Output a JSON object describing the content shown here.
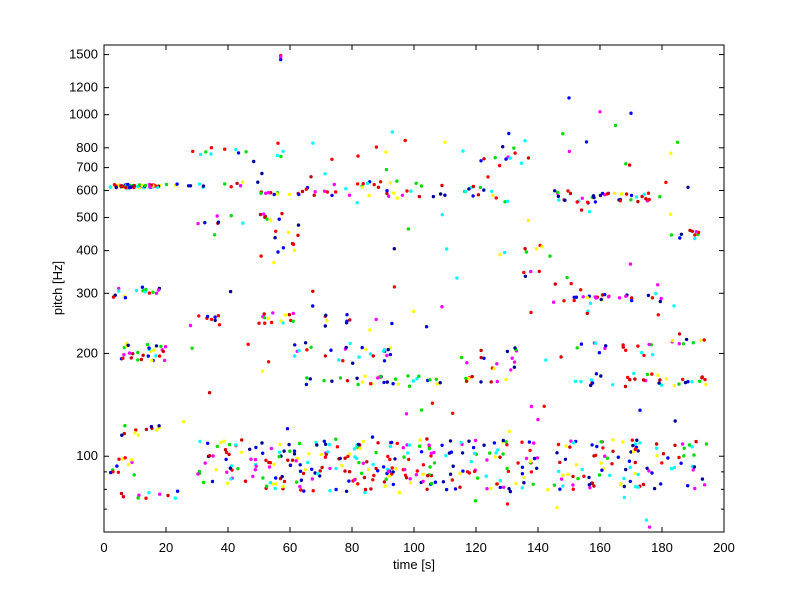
{
  "chart_data": {
    "type": "scatter",
    "title": "",
    "xlabel": "time [s]",
    "ylabel": "pitch [Hz]",
    "xlim": [
      0,
      200
    ],
    "ylim": [
      60,
      1600
    ],
    "yscale": "log",
    "grid": false,
    "legend": "none",
    "x_ticks": [
      0,
      20,
      40,
      60,
      80,
      100,
      120,
      140,
      160,
      180,
      200
    ],
    "x_tick_labels": [
      "0",
      "20",
      "40",
      "60",
      "80",
      "100",
      "120",
      "140",
      "160",
      "180",
      "200"
    ],
    "y_ticks": [
      100,
      200,
      300,
      400,
      500,
      600,
      700,
      800,
      1000,
      1200,
      1500
    ],
    "y_tick_labels": [
      "100",
      "200",
      "300",
      "400",
      "500",
      "600",
      "700",
      "800",
      "1000",
      "1200",
      "1500"
    ],
    "series_colors": [
      "#ff0000",
      "#0000ff",
      "#00dd00",
      "#ff00ff",
      "#00ffff",
      "#ffff00",
      "#000099",
      "#cc0000"
    ],
    "clusters": [
      {
        "x": [
          2,
          18
        ],
        "y": [
          610,
          625
        ],
        "n": 60
      },
      {
        "x": [
          2,
          20
        ],
        "y": [
          190,
          215
        ],
        "n": 30
      },
      {
        "x": [
          3,
          18
        ],
        "y": [
          290,
          315
        ],
        "n": 16
      },
      {
        "x": [
          5,
          18
        ],
        "y": [
          115,
          125
        ],
        "n": 12
      },
      {
        "x": [
          2,
          12
        ],
        "y": [
          88,
          100
        ],
        "n": 12
      },
      {
        "x": [
          5,
          25
        ],
        "y": [
          75,
          80
        ],
        "n": 10
      },
      {
        "x": [
          20,
          45
        ],
        "y": [
          610,
          630
        ],
        "n": 12
      },
      {
        "x": [
          30,
          60
        ],
        "y": [
          80,
          112
        ],
        "n": 70
      },
      {
        "x": [
          30,
          60
        ],
        "y": [
          480,
          520
        ],
        "n": 14
      },
      {
        "x": [
          25,
          60
        ],
        "y": [
          750,
          810
        ],
        "n": 12
      },
      {
        "x": [
          30,
          40
        ],
        "y": [
          240,
          260
        ],
        "n": 8
      },
      {
        "x": [
          50,
          65
        ],
        "y": [
          245,
          265
        ],
        "n": 14
      },
      {
        "x": [
          50,
          65
        ],
        "y": [
          580,
          600
        ],
        "n": 12
      },
      {
        "x": [
          55,
          65
        ],
        "y": [
          380,
          480
        ],
        "n": 10
      },
      {
        "x": [
          60,
          80
        ],
        "y": [
          190,
          215
        ],
        "n": 14
      },
      {
        "x": [
          60,
          100
        ],
        "y": [
          78,
          112
        ],
        "n": 110
      },
      {
        "x": [
          65,
          80
        ],
        "y": [
          580,
          620
        ],
        "n": 10
      },
      {
        "x": [
          70,
          80
        ],
        "y": [
          240,
          260
        ],
        "n": 8
      },
      {
        "x": [
          80,
          110
        ],
        "y": [
          570,
          640
        ],
        "n": 24
      },
      {
        "x": [
          80,
          95
        ],
        "y": [
          190,
          210
        ],
        "n": 12
      },
      {
        "x": [
          65,
          130
        ],
        "y": [
          162,
          172
        ],
        "n": 40
      },
      {
        "x": [
          100,
          140
        ],
        "y": [
          80,
          112
        ],
        "n": 90
      },
      {
        "x": [
          105,
          130
        ],
        "y": [
          570,
          620
        ],
        "n": 14
      },
      {
        "x": [
          115,
          135
        ],
        "y": [
          180,
          210
        ],
        "n": 14
      },
      {
        "x": [
          120,
          135
        ],
        "y": [
          700,
          800
        ],
        "n": 10
      },
      {
        "x": [
          135,
          145
        ],
        "y": [
          330,
          420
        ],
        "n": 10
      },
      {
        "x": [
          145,
          165
        ],
        "y": [
          280,
          300
        ],
        "n": 18
      },
      {
        "x": [
          145,
          160
        ],
        "y": [
          550,
          600
        ],
        "n": 18
      },
      {
        "x": [
          145,
          180
        ],
        "y": [
          80,
          112
        ],
        "n": 80
      },
      {
        "x": [
          160,
          180
        ],
        "y": [
          555,
          590
        ],
        "n": 22
      },
      {
        "x": [
          165,
          180
        ],
        "y": [
          280,
          300
        ],
        "n": 10
      },
      {
        "x": [
          150,
          180
        ],
        "y": [
          160,
          175
        ],
        "n": 20
      },
      {
        "x": [
          150,
          180
        ],
        "y": [
          195,
          215
        ],
        "n": 16
      },
      {
        "x": [
          180,
          195
        ],
        "y": [
          160,
          172
        ],
        "n": 12
      },
      {
        "x": [
          182,
          195
        ],
        "y": [
          210,
          220
        ],
        "n": 8
      },
      {
        "x": [
          182,
          192
        ],
        "y": [
          430,
          460
        ],
        "n": 10
      },
      {
        "x": [
          180,
          195
        ],
        "y": [
          80,
          112
        ],
        "n": 20
      },
      {
        "x": [
          25,
          190
        ],
        "y": [
          70,
          900
        ],
        "n": 120
      }
    ],
    "points": [
      {
        "x": 57,
        "y": 1470,
        "color": "#00ffff"
      },
      {
        "x": 57,
        "y": 1490,
        "color": "#ff0000"
      },
      {
        "x": 57,
        "y": 1450,
        "color": "#0000ff"
      },
      {
        "x": 57,
        "y": 1480,
        "color": "#ff00ff"
      },
      {
        "x": 150,
        "y": 1120,
        "color": "#0000ff"
      },
      {
        "x": 160,
        "y": 1020,
        "color": "#ff00ff"
      },
      {
        "x": 170,
        "y": 1010,
        "color": "#0000ff"
      },
      {
        "x": 165,
        "y": 930,
        "color": "#00dd00"
      },
      {
        "x": 93,
        "y": 890,
        "color": "#00ffff"
      },
      {
        "x": 148,
        "y": 880,
        "color": "#00dd00"
      },
      {
        "x": 110,
        "y": 830,
        "color": "#ffff00"
      },
      {
        "x": 185,
        "y": 830,
        "color": "#00dd00"
      },
      {
        "x": 176,
        "y": 62,
        "color": "#ff00ff"
      },
      {
        "x": 175,
        "y": 65,
        "color": "#00ffff"
      },
      {
        "x": 142,
        "y": 140,
        "color": "#ff0000"
      },
      {
        "x": 140,
        "y": 128,
        "color": "#ff00ff"
      }
    ]
  }
}
